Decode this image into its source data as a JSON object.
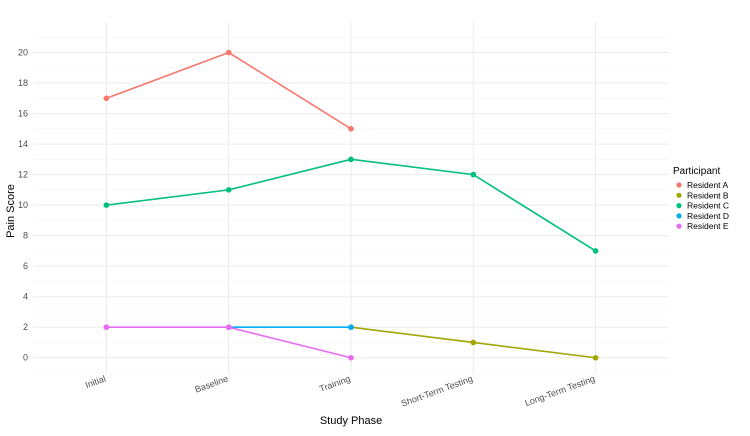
{
  "chart_data": {
    "type": "line",
    "title": "",
    "xlabel": "Study Phase",
    "ylabel": "Pain Score",
    "categories": [
      "Initial",
      "Baseline",
      "Training",
      "Short-Term Testing",
      "Long-Term Testing"
    ],
    "yticks": [
      0,
      2,
      4,
      6,
      8,
      10,
      12,
      14,
      16,
      18,
      20
    ],
    "ylim": [
      -1,
      22
    ],
    "grid": true,
    "legend": {
      "title": "Participant",
      "position": "right"
    },
    "series": [
      {
        "name": "Resident A",
        "color": "#F8766D",
        "values": [
          17,
          20,
          15,
          null,
          null
        ]
      },
      {
        "name": "Resident B",
        "color": "#A3A500",
        "values": [
          null,
          null,
          2,
          1,
          0
        ]
      },
      {
        "name": "Resident C",
        "color": "#00BF7D",
        "values": [
          10,
          11,
          13,
          12,
          7
        ]
      },
      {
        "name": "Resident D",
        "color": "#00B0F6",
        "values": [
          null,
          2,
          2,
          null,
          null
        ]
      },
      {
        "name": "Resident E",
        "color": "#E76BF3",
        "values": [
          2,
          2,
          0,
          null,
          null
        ]
      }
    ]
  }
}
